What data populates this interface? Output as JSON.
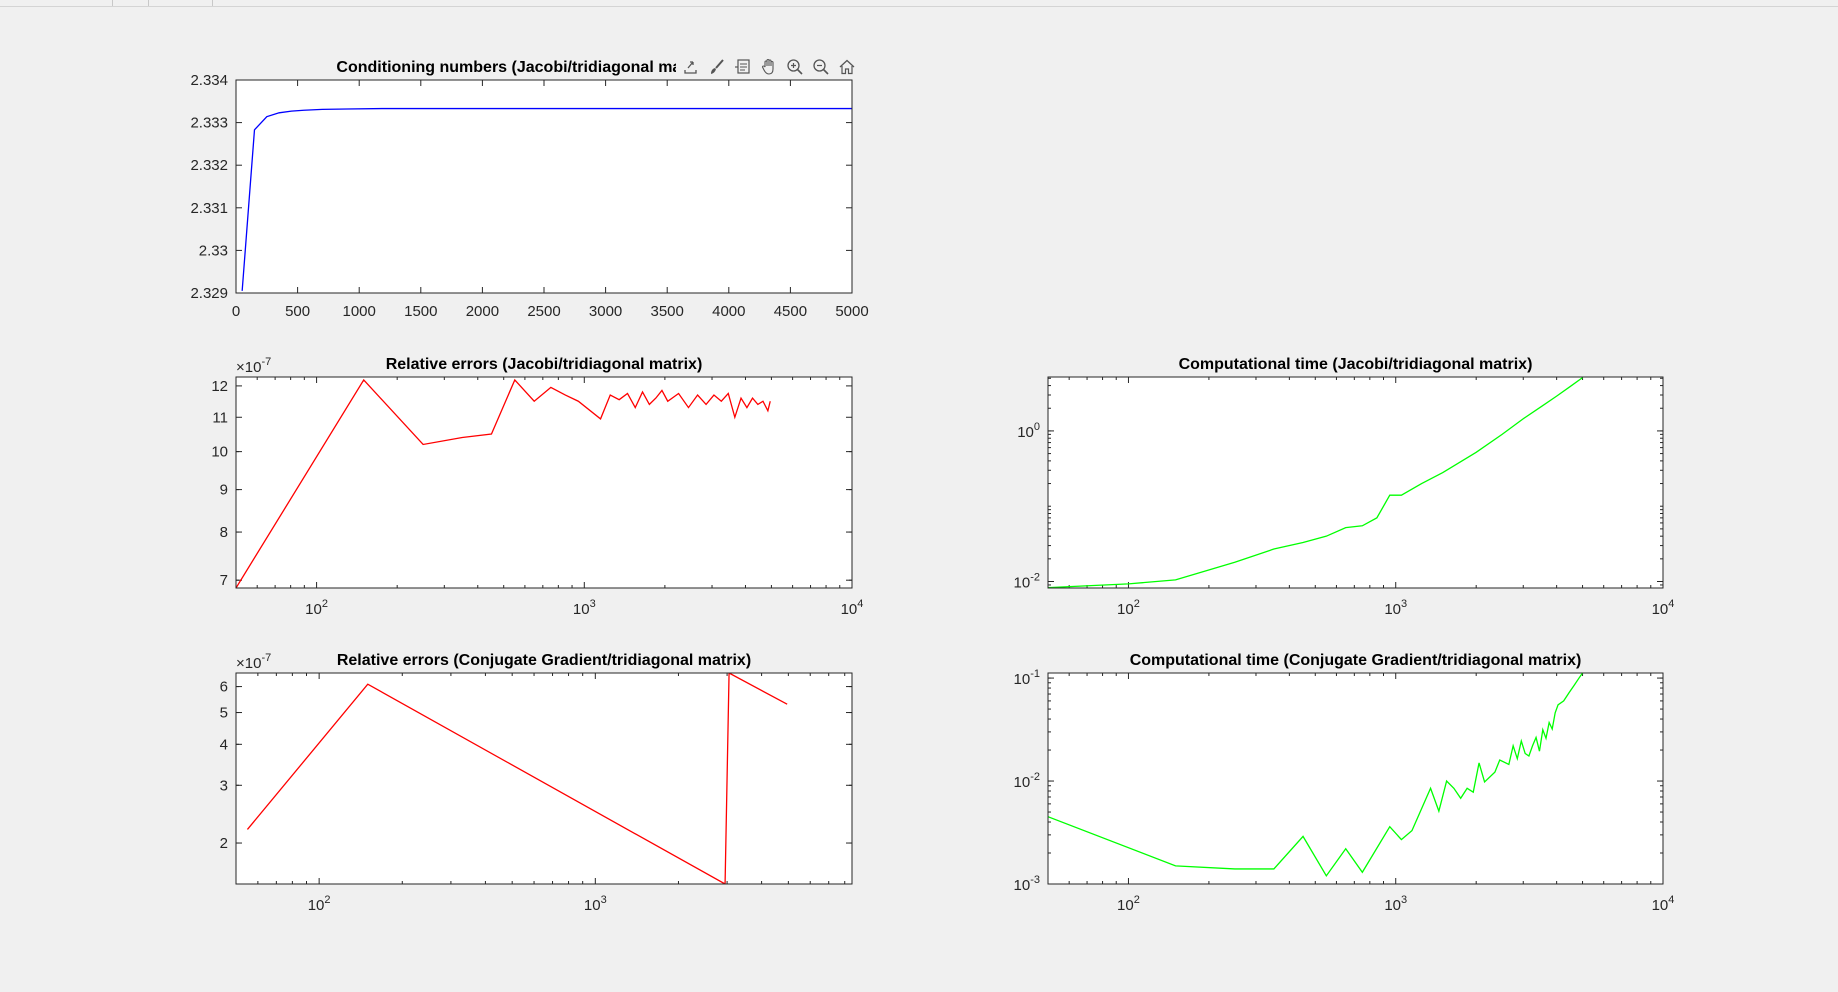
{
  "figure": {
    "background": "#f0f0f0",
    "axes_background": "#ffffff",
    "toolbar": {
      "icons": [
        "export-icon",
        "brush-icon",
        "datatip-icon",
        "pan-icon",
        "zoom-in-icon",
        "zoom-out-icon",
        "home-icon"
      ]
    }
  },
  "chart_data": [
    {
      "id": "cond",
      "type": "line",
      "title": "Conditioning numbers (Jacobi/tridiagonal matrix)",
      "xscale": "linear",
      "yscale": "linear",
      "xlim": [
        0,
        5000
      ],
      "ylim": [
        2.329,
        2.334
      ],
      "xticks": [
        0,
        500,
        1000,
        1500,
        2000,
        2500,
        3000,
        3500,
        4000,
        4500,
        5000
      ],
      "yticks": [
        2.329,
        2.33,
        2.331,
        2.332,
        2.333,
        2.334
      ],
      "ytick_labels": [
        "2.329",
        "2.33",
        "2.331",
        "2.332",
        "2.333",
        "2.334"
      ],
      "exponent_label": "",
      "color": "#0000ff",
      "x": [
        50,
        150,
        250,
        350,
        450,
        550,
        700,
        900,
        1200,
        1600,
        2000,
        3000,
        4000,
        5000
      ],
      "y": [
        2.32905,
        2.33283,
        2.33314,
        2.33323,
        2.33327,
        2.33329,
        2.33331,
        2.33332,
        2.33333,
        2.33333,
        2.33333,
        2.33333,
        2.33333,
        2.33333
      ]
    },
    {
      "id": "relerr_jacobi",
      "type": "line",
      "title": "Relative errors (Jacobi/tridiagonal matrix)",
      "xscale": "log",
      "yscale": "log",
      "xlim": [
        50,
        10000
      ],
      "ylim": [
        6.85e-07,
        1.23e-06
      ],
      "xticks": [
        100,
        1000,
        10000
      ],
      "xtick_labels": [
        [
          "10",
          "2"
        ],
        [
          "10",
          "3"
        ],
        [
          "10",
          "4"
        ]
      ],
      "yticks": [
        7e-07,
        8e-07,
        9e-07,
        1e-06,
        1.1e-06,
        1.2e-06
      ],
      "ytick_labels": [
        "7",
        "8",
        "9",
        "10",
        "11",
        "12"
      ],
      "exponent_label": [
        "×10",
        "-7"
      ],
      "color": "#ff0000",
      "x": [
        50,
        150,
        250,
        350,
        450,
        550,
        650,
        750,
        850,
        950,
        1150,
        1250,
        1350,
        1450,
        1550,
        1650,
        1750,
        1850,
        1950,
        2050,
        2250,
        2450,
        2650,
        2850,
        3050,
        3250,
        3450,
        3650,
        3850,
        4050,
        4250,
        4450,
        4650,
        4850,
        4950
      ],
      "y": [
        6.85e-07,
        1.22e-06,
        1.02e-06,
        1.04e-06,
        1.05e-06,
        1.22e-06,
        1.15e-06,
        1.195e-06,
        1.17e-06,
        1.15e-06,
        1.095e-06,
        1.17e-06,
        1.155e-06,
        1.175e-06,
        1.13e-06,
        1.18e-06,
        1.14e-06,
        1.16e-06,
        1.185e-06,
        1.15e-06,
        1.175e-06,
        1.13e-06,
        1.17e-06,
        1.14e-06,
        1.17e-06,
        1.15e-06,
        1.175e-06,
        1.1e-06,
        1.16e-06,
        1.13e-06,
        1.16e-06,
        1.14e-06,
        1.15e-06,
        1.12e-06,
        1.15e-06
      ]
    },
    {
      "id": "comptime_jacobi",
      "type": "line",
      "title": "Computational time (Jacobi/tridiagonal matrix)",
      "xscale": "log",
      "yscale": "log",
      "xlim": [
        50,
        10000
      ],
      "ylim": [
        0.0082,
        5.2
      ],
      "xticks": [
        100,
        1000,
        10000
      ],
      "xtick_labels": [
        [
          "10",
          "2"
        ],
        [
          "10",
          "3"
        ],
        [
          "10",
          "4"
        ]
      ],
      "yticks": [
        0.01,
        1
      ],
      "ytick_labels": [
        [
          "10",
          "-2"
        ],
        [
          "10",
          "0"
        ]
      ],
      "exponent_label": "",
      "color": "#00ff00",
      "x": [
        50,
        100,
        150,
        250,
        350,
        450,
        550,
        650,
        750,
        850,
        950,
        1050,
        1250,
        1500,
        2000,
        2500,
        3000,
        3500,
        4000,
        4500,
        5000
      ],
      "y": [
        0.0083,
        0.0093,
        0.0105,
        0.018,
        0.027,
        0.033,
        0.04,
        0.052,
        0.055,
        0.07,
        0.14,
        0.14,
        0.2,
        0.28,
        0.52,
        0.9,
        1.45,
        2.1,
        2.9,
        3.9,
        5.1
      ]
    },
    {
      "id": "relerr_cg",
      "type": "line",
      "title": "Relative errors (Conjugate Gradient/tridiagonal matrix)",
      "xscale": "log",
      "yscale": "log",
      "xlim": [
        50,
        8500
      ],
      "ylim": [
        1.5e-07,
        6.6e-07
      ],
      "xticks": [
        100,
        1000
      ],
      "xtick_labels": [
        [
          "10",
          "2"
        ],
        [
          "10",
          "3"
        ]
      ],
      "yticks": [
        2e-07,
        3e-07,
        4e-07,
        5e-07,
        6e-07
      ],
      "ytick_labels": [
        "2",
        "3",
        "4",
        "5",
        "6"
      ],
      "exponent_label": [
        "×10",
        "-7"
      ],
      "color": "#ff0000",
      "x": [
        55,
        150,
        2950,
        3050,
        4950
      ],
      "y": [
        2.2e-07,
        6.1e-07,
        1.5e-07,
        6.6e-07,
        5.3e-07
      ]
    },
    {
      "id": "comptime_cg",
      "type": "line",
      "title": "Computational time (Conjugate Gradient/tridiagonal matrix)",
      "xscale": "log",
      "yscale": "log",
      "xlim": [
        50,
        10000
      ],
      "ylim": [
        0.001,
        0.112
      ],
      "xticks": [
        100,
        1000,
        10000
      ],
      "xtick_labels": [
        [
          "10",
          "2"
        ],
        [
          "10",
          "3"
        ],
        [
          "10",
          "4"
        ]
      ],
      "yticks": [
        0.001,
        0.01,
        0.1
      ],
      "ytick_labels": [
        [
          "10",
          "-3"
        ],
        [
          "10",
          "-2"
        ],
        [
          "10",
          "-1"
        ]
      ],
      "exponent_label": "",
      "color": "#00ff00",
      "x": [
        50,
        150,
        250,
        350,
        450,
        550,
        650,
        750,
        950,
        1050,
        1150,
        1350,
        1450,
        1550,
        1650,
        1750,
        1850,
        1950,
        2050,
        2150,
        2350,
        2450,
        2650,
        2750,
        2850,
        2950,
        3050,
        3150,
        3250,
        3350,
        3450,
        3550,
        3650,
        3750,
        3850,
        3950,
        4050,
        4250,
        4450,
        4650,
        4850,
        5000
      ],
      "y": [
        0.0045,
        0.0015,
        0.0014,
        0.0014,
        0.0029,
        0.0012,
        0.0022,
        0.0013,
        0.0036,
        0.0027,
        0.0033,
        0.0085,
        0.0051,
        0.01,
        0.0085,
        0.0068,
        0.0085,
        0.0078,
        0.015,
        0.0098,
        0.0122,
        0.016,
        0.0145,
        0.022,
        0.0165,
        0.0245,
        0.0185,
        0.0175,
        0.022,
        0.0265,
        0.0195,
        0.0315,
        0.026,
        0.037,
        0.032,
        0.046,
        0.055,
        0.06,
        0.072,
        0.085,
        0.1,
        0.112
      ]
    }
  ]
}
